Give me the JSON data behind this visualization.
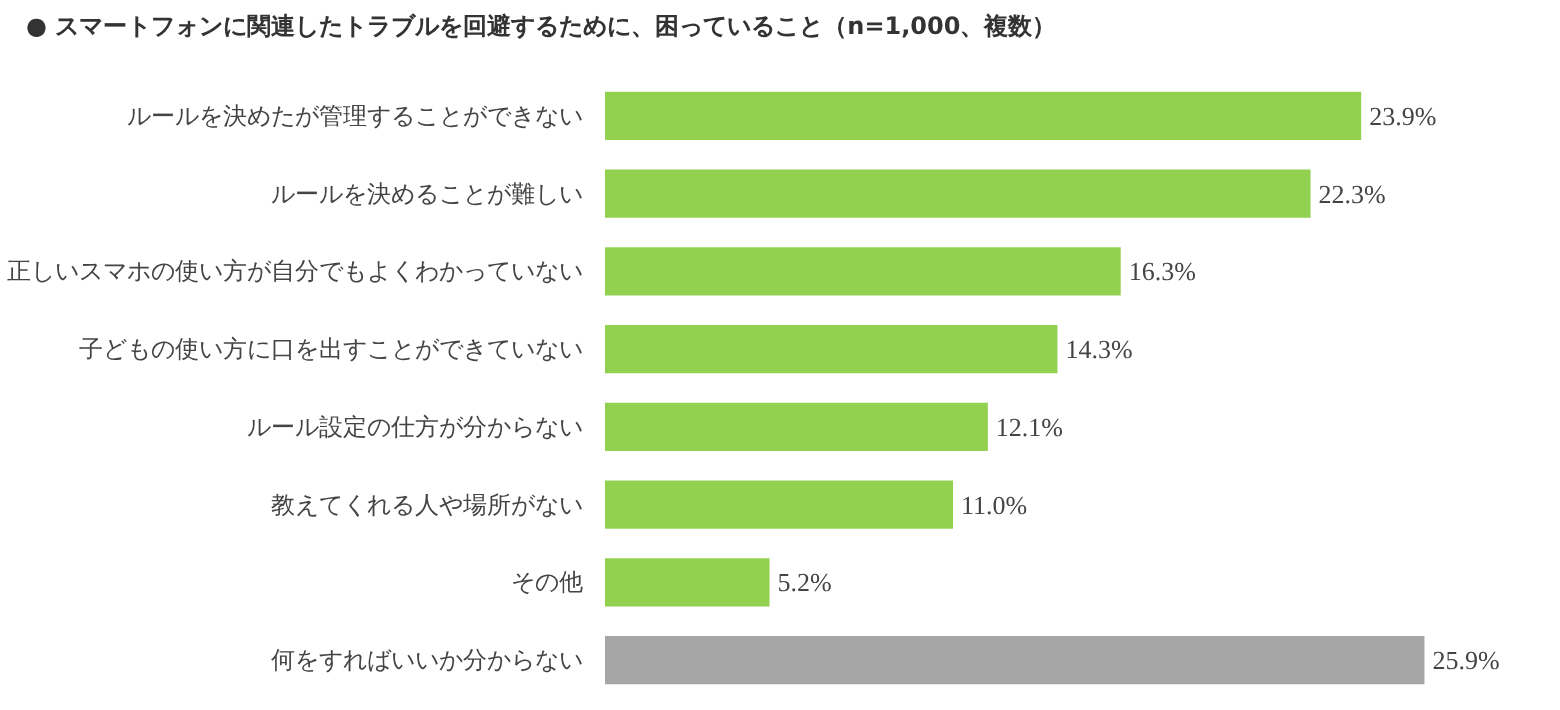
{
  "chart_data": {
    "type": "bar",
    "orientation": "horizontal",
    "title": "●  スマートフォンに関連したトラブルを回避するために、困っていること（n=1,000、複数）",
    "categories": [
      "ルールを決めたが管理することができない",
      "ルールを決めることが難しい",
      "正しいスマホの使い方が自分でもよくわかっていない",
      "子どもの使い方に口を出すことができていない",
      "ルール設定の仕方が分からない",
      "教えてくれる人や場所がない",
      "その他",
      "何をすればいいか分からない"
    ],
    "values": [
      23.9,
      22.3,
      16.3,
      14.3,
      12.1,
      11.0,
      5.2,
      25.9
    ],
    "value_labels": [
      "23.9%",
      "22.3%",
      "16.3%",
      "14.3%",
      "12.1%",
      "11.0%",
      "5.2%",
      "25.9%"
    ],
    "colors": [
      "#92d050",
      "#92d050",
      "#92d050",
      "#92d050",
      "#92d050",
      "#92d050",
      "#92d050",
      "#a6a6a6"
    ],
    "grid": false
  }
}
